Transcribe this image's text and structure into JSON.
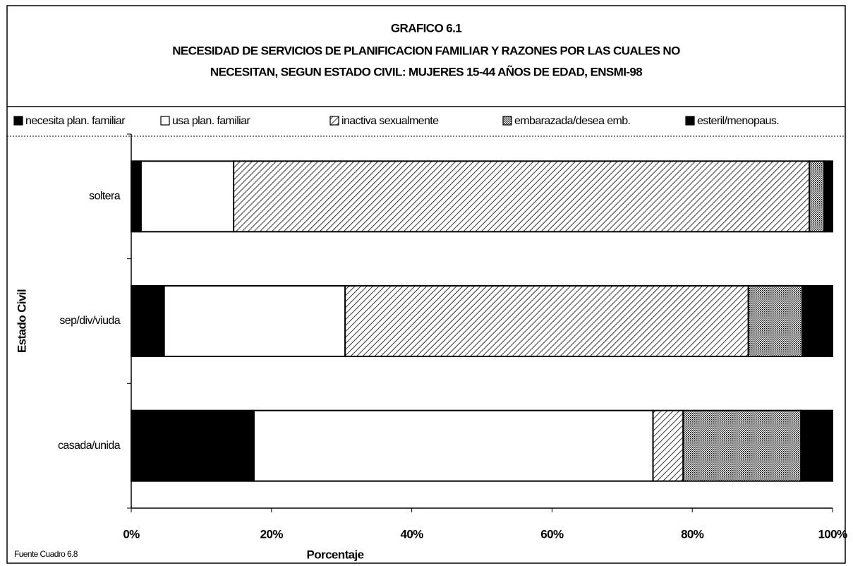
{
  "chart_data": {
    "type": "stacked-barh",
    "title": [
      "GRAFICO 6.1",
      "NECESIDAD DE SERVICIOS DE PLANIFICACION FAMILIAR Y RAZONES POR LAS CUALES NO",
      "NECESITAN, SEGUN ESTADO CIVIL: MUJERES 15-44 AÑOS DE EDAD, ENSMI-98"
    ],
    "categories": [
      "soltera",
      "sep/div/viuda",
      "casada/unida"
    ],
    "series": [
      {
        "name": "necesita plan. familiar",
        "color": "#000000",
        "values": [
          1.4,
          4.7,
          17.5
        ]
      },
      {
        "name": "usa plan. familiar",
        "color": "#ffffff",
        "values": [
          13.2,
          25.8,
          56.9
        ]
      },
      {
        "name": "inactiva sexualmente",
        "color": "#ffffff",
        "pattern": "diagonal",
        "values": [
          82.1,
          57.5,
          4.3
        ]
      },
      {
        "name": "embarazada/desea emb.",
        "color": "#bbbbbb",
        "pattern": "dots",
        "values": [
          2.1,
          7.7,
          16.8
        ]
      },
      {
        "name": "esteril/menopaus.",
        "color": "#000000",
        "values": [
          1.2,
          4.3,
          4.5
        ]
      }
    ],
    "xlim": [
      0,
      100
    ],
    "xticks": [
      {
        "value": 0,
        "label": "0%"
      },
      {
        "value": 20,
        "label": "20%"
      },
      {
        "value": 40,
        "label": "40%"
      },
      {
        "value": 60,
        "label": "60%"
      },
      {
        "value": 80,
        "label": "80%"
      },
      {
        "value": 100,
        "label": "100%"
      }
    ],
    "xlabel": "Porcentaje",
    "ylabel": "Estado Civil",
    "source": "Fuente Cuadro 6.8",
    "legend": "top"
  }
}
